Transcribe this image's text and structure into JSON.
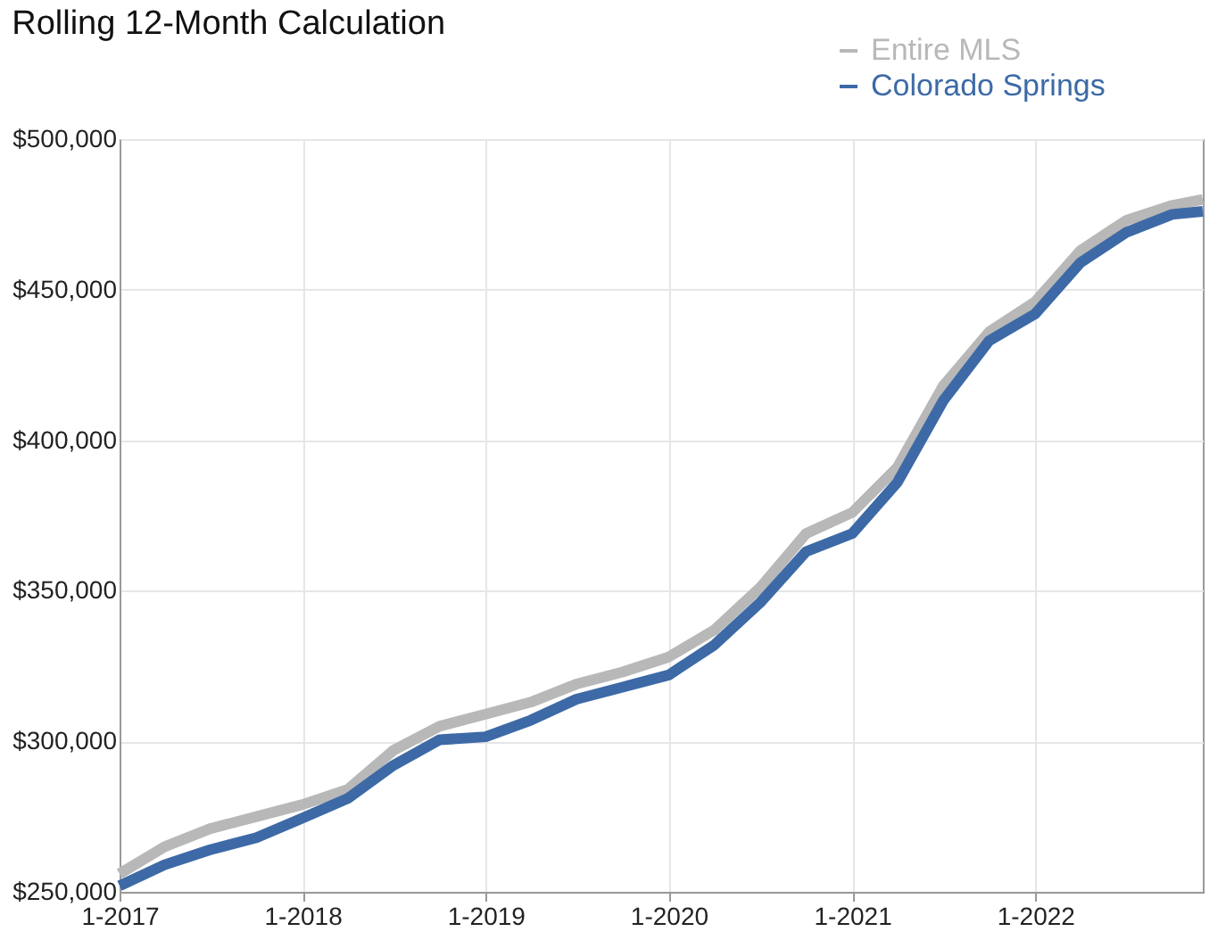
{
  "chart_data": {
    "type": "line",
    "title": "Rolling 12-Month Calculation",
    "x": [
      "2017-01",
      "2017-04",
      "2017-07",
      "2017-10",
      "2018-01",
      "2018-04",
      "2018-07",
      "2018-10",
      "2019-01",
      "2019-04",
      "2019-07",
      "2019-10",
      "2020-01",
      "2020-04",
      "2020-07",
      "2020-10",
      "2021-01",
      "2021-04",
      "2021-07",
      "2021-10",
      "2022-01",
      "2022-04",
      "2022-07",
      "2022-10",
      "2022-12"
    ],
    "series": [
      {
        "name": "Entire MLS",
        "color": "#b8b8b8",
        "values": [
          256000,
          265000,
          271000,
          275000,
          279000,
          284000,
          297000,
          305000,
          309000,
          313000,
          319000,
          323000,
          328000,
          337000,
          351000,
          369000,
          376000,
          391000,
          418000,
          436000,
          446000,
          463000,
          473000,
          478000,
          480000
        ]
      },
      {
        "name": "Colorado Springs",
        "color": "#3d6aa6",
        "values": [
          252000,
          259000,
          264000,
          268000,
          274500,
          281000,
          292000,
          300500,
          301500,
          307000,
          314000,
          318000,
          322000,
          332000,
          346000,
          363000,
          369000,
          386000,
          413000,
          433000,
          442000,
          459000,
          469000,
          475000,
          476000
        ]
      }
    ],
    "xlim": [
      "2017-01",
      "2022-12"
    ],
    "xticks": [
      {
        "value": "2017-01",
        "label": "1-2017"
      },
      {
        "value": "2018-01",
        "label": "1-2018"
      },
      {
        "value": "2019-01",
        "label": "1-2019"
      },
      {
        "value": "2020-01",
        "label": "1-2020"
      },
      {
        "value": "2021-01",
        "label": "1-2021"
      },
      {
        "value": "2022-01",
        "label": "1-2022"
      }
    ],
    "ylim": [
      250000,
      500000
    ],
    "yticks": [
      {
        "value": 250000,
        "label": "$250,000"
      },
      {
        "value": 300000,
        "label": "$300,000"
      },
      {
        "value": 350000,
        "label": "$350,000"
      },
      {
        "value": 400000,
        "label": "$400,000"
      },
      {
        "value": 450000,
        "label": "$450,000"
      },
      {
        "value": 500000,
        "label": "$500,000"
      }
    ],
    "grid": true,
    "legend": "top right",
    "line_style": "solid",
    "marker": "none"
  }
}
